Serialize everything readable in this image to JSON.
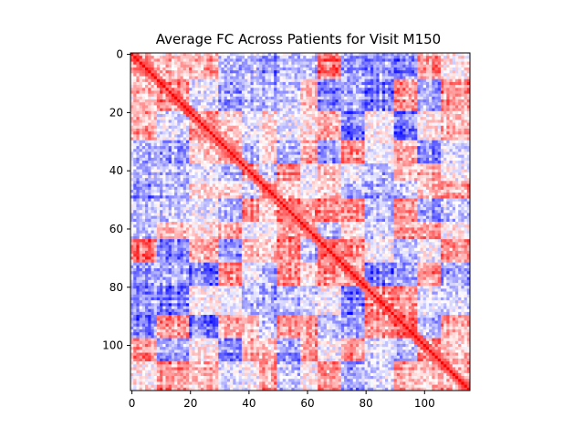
{
  "chart_data": {
    "type": "heatmap",
    "title": "Average FC Across Patients for Visit M150",
    "xlabel": "",
    "ylabel": "",
    "matrix_size": 116,
    "xlim": [
      0,
      116
    ],
    "ylim": [
      116,
      0
    ],
    "x_ticks": [
      0,
      20,
      40,
      60,
      80,
      100
    ],
    "y_ticks": [
      0,
      20,
      40,
      60,
      80,
      100
    ],
    "x_tick_labels": [
      "0",
      "20",
      "40",
      "60",
      "80",
      "100"
    ],
    "y_tick_labels": [
      "0",
      "20",
      "40",
      "60",
      "80",
      "100"
    ],
    "colormap": "bwr",
    "value_range": [
      -1,
      1
    ],
    "diagonal_value": 1,
    "grid": false,
    "legend": "none",
    "colors": {
      "negative": "#0000ff",
      "zero": "#ffffff",
      "positive": "#ff0000"
    }
  }
}
